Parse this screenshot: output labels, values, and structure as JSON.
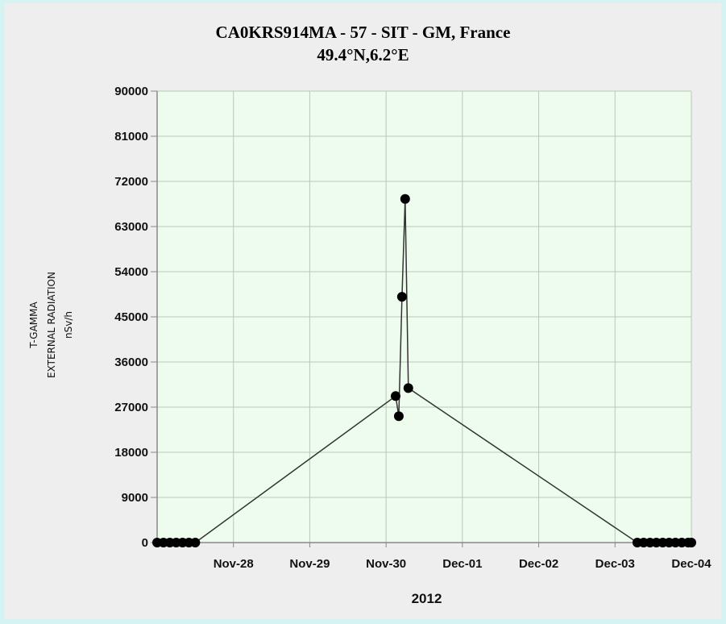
{
  "chart_data": {
    "type": "line",
    "title": "CA0KRS914MA - 57 - SIT - GM, France",
    "subtitle": "49.4°N,6.2°E",
    "ylabel_lines": [
      "T-GAMMA",
      "EXTERNAL RADIATION",
      "nSv/h"
    ],
    "xlabel": "2012",
    "ylim": [
      0,
      90000
    ],
    "yticks": [
      0,
      9000,
      18000,
      27000,
      36000,
      45000,
      54000,
      63000,
      72000,
      81000,
      90000
    ],
    "x_range": [
      "2012-11-27T00:00",
      "2012-12-04T00:00"
    ],
    "xticks": [
      {
        "date": "2012-11-28T00:00",
        "label": "Nov-28"
      },
      {
        "date": "2012-11-29T00:00",
        "label": "Nov-29"
      },
      {
        "date": "2012-11-30T00:00",
        "label": "Nov-30"
      },
      {
        "date": "2012-12-01T00:00",
        "label": "Dec-01"
      },
      {
        "date": "2012-12-02T00:00",
        "label": "Dec-02"
      },
      {
        "date": "2012-12-03T00:00",
        "label": "Dec-03"
      },
      {
        "date": "2012-12-04T00:00",
        "label": "Dec-04"
      }
    ],
    "grid": true,
    "series": [
      {
        "color": "#333333",
        "points": [
          {
            "x": "2012-11-27T00:00",
            "y": 0
          },
          {
            "x": "2012-11-27T02:00",
            "y": 0
          },
          {
            "x": "2012-11-27T04:00",
            "y": 0
          },
          {
            "x": "2012-11-27T06:00",
            "y": 0
          },
          {
            "x": "2012-11-27T08:00",
            "y": 0
          },
          {
            "x": "2012-11-27T10:00",
            "y": 0
          },
          {
            "x": "2012-11-27T12:00",
            "y": 0
          },
          {
            "x": "2012-11-30T03:00",
            "y": 29200
          },
          {
            "x": "2012-11-30T04:00",
            "y": 25200
          },
          {
            "x": "2012-11-30T05:00",
            "y": 49000
          },
          {
            "x": "2012-11-30T06:00",
            "y": 68500
          },
          {
            "x": "2012-11-30T07:00",
            "y": 30800
          },
          {
            "x": "2012-12-03T07:00",
            "y": 0
          },
          {
            "x": "2012-12-03T09:00",
            "y": 0
          },
          {
            "x": "2012-12-03T11:00",
            "y": 0
          },
          {
            "x": "2012-12-03T13:00",
            "y": 0
          },
          {
            "x": "2012-12-03T15:00",
            "y": 0
          },
          {
            "x": "2012-12-03T17:00",
            "y": 0
          },
          {
            "x": "2012-12-03T19:00",
            "y": 0
          },
          {
            "x": "2012-12-03T21:00",
            "y": 0
          },
          {
            "x": "2012-12-03T23:00",
            "y": 0
          },
          {
            "x": "2012-12-04T00:00",
            "y": 0
          }
        ]
      }
    ]
  },
  "colors": {
    "plot_background": "#eefcee",
    "grid": "#b8c8b8",
    "axis": "#888888",
    "line": "#333333",
    "marker": "#000000"
  }
}
